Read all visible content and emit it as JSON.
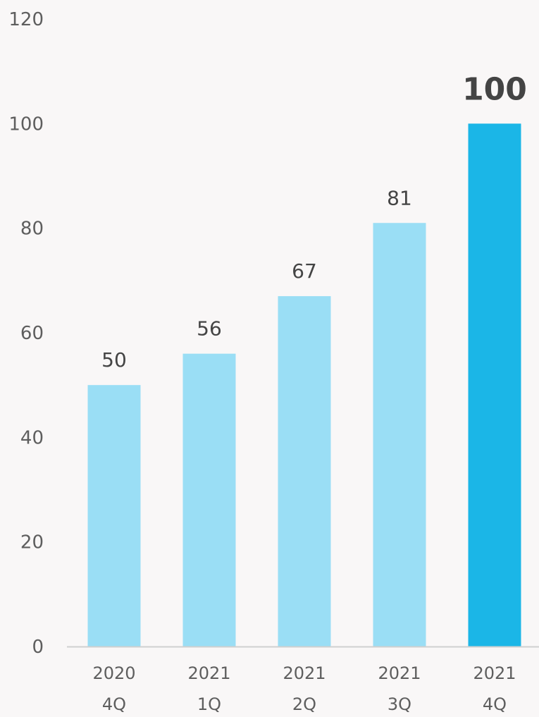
{
  "chart_data": {
    "type": "bar",
    "title": "",
    "xlabel": "",
    "ylabel": "",
    "ylim": [
      0,
      120
    ],
    "yticks": [
      0,
      20,
      40,
      60,
      80,
      100,
      120
    ],
    "categories": [
      [
        "2020",
        "4Q"
      ],
      [
        "2021",
        "1Q"
      ],
      [
        "2021",
        "2Q"
      ],
      [
        "2021",
        "3Q"
      ],
      [
        "2021",
        "4Q"
      ]
    ],
    "values": [
      50,
      56,
      67,
      81,
      100
    ],
    "highlight_index": 4,
    "grid": false,
    "legend": "none"
  },
  "colors": {
    "bar": "#9adef5",
    "bar_highlight": "#1bb6e7",
    "highlight_label": "#1bb6e7",
    "axis_line": "#d0d0d0",
    "background": "#f9f7f7"
  }
}
